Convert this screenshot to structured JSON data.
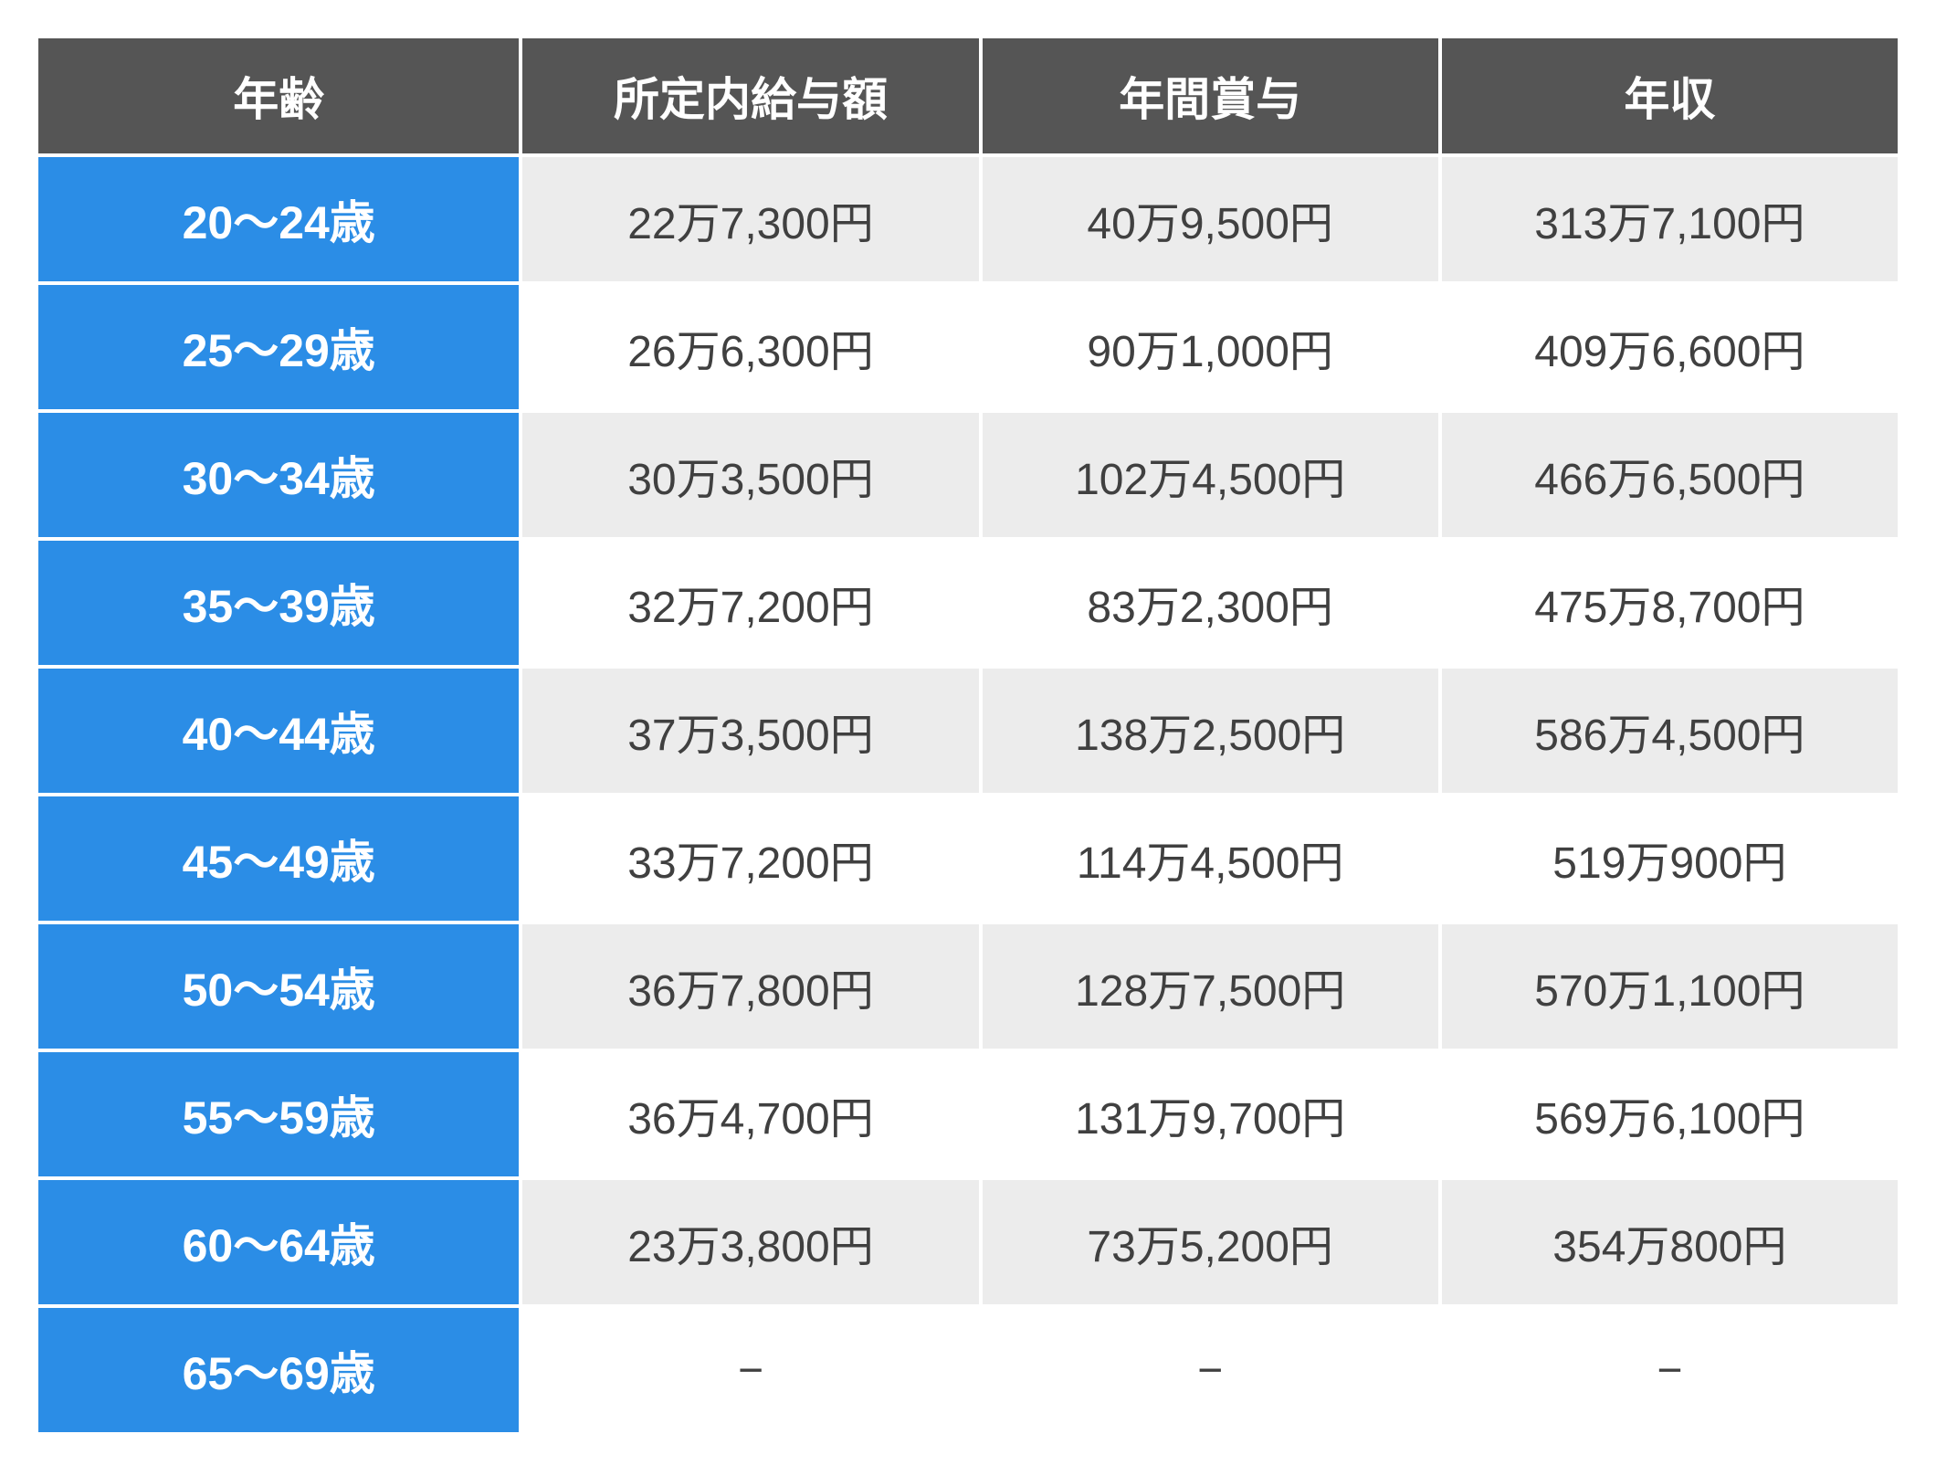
{
  "table": {
    "columns": [
      "年齢",
      "所定内給与額",
      "年間賞与",
      "年収"
    ],
    "rows": [
      {
        "age": "20〜24歳",
        "salary": "22万7,300円",
        "bonus": "40万9,500円",
        "annual": "313万7,100円"
      },
      {
        "age": "25〜29歳",
        "salary": "26万6,300円",
        "bonus": "90万1,000円",
        "annual": "409万6,600円"
      },
      {
        "age": "30〜34歳",
        "salary": "30万3,500円",
        "bonus": "102万4,500円",
        "annual": "466万6,500円"
      },
      {
        "age": "35〜39歳",
        "salary": "32万7,200円",
        "bonus": "83万2,300円",
        "annual": "475万8,700円"
      },
      {
        "age": "40〜44歳",
        "salary": "37万3,500円",
        "bonus": "138万2,500円",
        "annual": "586万4,500円"
      },
      {
        "age": "45〜49歳",
        "salary": "33万7,200円",
        "bonus": "114万4,500円",
        "annual": "519万900円"
      },
      {
        "age": "50〜54歳",
        "salary": "36万7,800円",
        "bonus": "128万7,500円",
        "annual": "570万1,100円"
      },
      {
        "age": "55〜59歳",
        "salary": "36万4,700円",
        "bonus": "131万9,700円",
        "annual": "569万6,100円"
      },
      {
        "age": "60〜64歳",
        "salary": "23万3,800円",
        "bonus": "73万5,200円",
        "annual": "354万800円"
      },
      {
        "age": "65〜69歳",
        "salary": "−",
        "bonus": "−",
        "annual": "−"
      }
    ],
    "colors": {
      "header_bg": "#555555",
      "header_text": "#ffffff",
      "age_bg": "#2b8de6",
      "age_text": "#ffffff",
      "row_odd_bg": "#ececec",
      "row_even_bg": "#ffffff",
      "cell_text": "#404040",
      "border": "#ffffff"
    },
    "font_sizes": {
      "header": 50,
      "age": 50,
      "cell": 48
    }
  }
}
